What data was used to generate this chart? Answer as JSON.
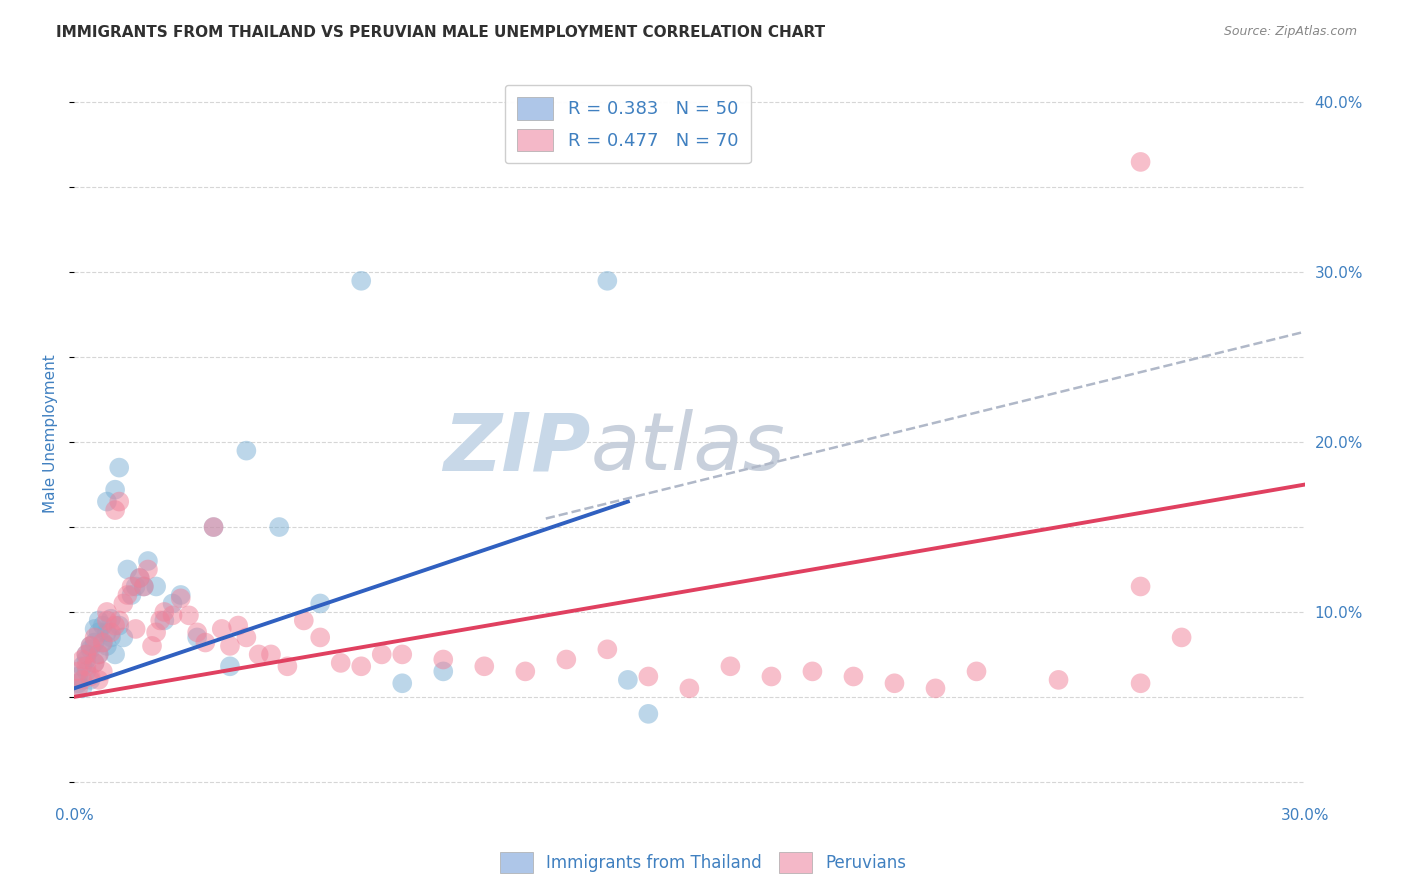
{
  "title": "IMMIGRANTS FROM THAILAND VS PERUVIAN MALE UNEMPLOYMENT CORRELATION CHART",
  "source": "Source: ZipAtlas.com",
  "ylabel": "Male Unemployment",
  "x_min": 0.0,
  "x_max": 0.3,
  "y_min": -0.01,
  "y_max": 0.42,
  "x_ticks": [
    0.0,
    0.05,
    0.1,
    0.15,
    0.2,
    0.25,
    0.3
  ],
  "x_tick_labels": [
    "0.0%",
    "",
    "",
    "",
    "",
    "",
    "30.0%"
  ],
  "y_ticks_right": [
    0.0,
    0.1,
    0.2,
    0.3,
    0.4
  ],
  "y_tick_labels_right": [
    "",
    "10.0%",
    "20.0%",
    "30.0%",
    "40.0%"
  ],
  "legend_blue_label": "R = 0.383   N = 50",
  "legend_pink_label": "R = 0.477   N = 70",
  "legend_blue_color": "#aec6e8",
  "legend_pink_color": "#f4b8c8",
  "scatter_blue_color": "#7aafd4",
  "scatter_pink_color": "#f08098",
  "line_blue_color": "#3060c0",
  "line_pink_color": "#e04060",
  "line_dashed_color": "#b0b8c8",
  "watermark_zip_color": "#c8d8e8",
  "watermark_atlas_color": "#c8d0dc",
  "background_color": "#ffffff",
  "grid_color": "#cccccc",
  "title_color": "#303030",
  "axis_label_color": "#4080c0",
  "tick_label_color": "#4080c0",
  "blue_scatter_x": [
    0.001,
    0.001,
    0.002,
    0.002,
    0.003,
    0.003,
    0.003,
    0.004,
    0.004,
    0.004,
    0.005,
    0.005,
    0.005,
    0.006,
    0.006,
    0.006,
    0.007,
    0.007,
    0.008,
    0.008,
    0.008,
    0.009,
    0.009,
    0.01,
    0.01,
    0.011,
    0.011,
    0.012,
    0.013,
    0.014,
    0.015,
    0.016,
    0.017,
    0.018,
    0.02,
    0.022,
    0.024,
    0.026,
    0.03,
    0.034,
    0.038,
    0.042,
    0.05,
    0.06,
    0.07,
    0.08,
    0.09,
    0.13,
    0.135,
    0.14
  ],
  "blue_scatter_y": [
    0.062,
    0.058,
    0.055,
    0.068,
    0.065,
    0.075,
    0.072,
    0.06,
    0.08,
    0.078,
    0.07,
    0.09,
    0.082,
    0.088,
    0.075,
    0.095,
    0.082,
    0.092,
    0.08,
    0.165,
    0.088,
    0.096,
    0.085,
    0.075,
    0.172,
    0.185,
    0.092,
    0.085,
    0.125,
    0.11,
    0.115,
    0.12,
    0.115,
    0.13,
    0.115,
    0.095,
    0.105,
    0.11,
    0.085,
    0.15,
    0.068,
    0.195,
    0.15,
    0.105,
    0.295,
    0.058,
    0.065,
    0.295,
    0.06,
    0.04
  ],
  "pink_scatter_x": [
    0.001,
    0.001,
    0.002,
    0.002,
    0.003,
    0.003,
    0.004,
    0.004,
    0.005,
    0.005,
    0.006,
    0.006,
    0.007,
    0.007,
    0.008,
    0.008,
    0.009,
    0.01,
    0.01,
    0.011,
    0.011,
    0.012,
    0.013,
    0.014,
    0.015,
    0.016,
    0.017,
    0.018,
    0.019,
    0.02,
    0.021,
    0.022,
    0.024,
    0.026,
    0.028,
    0.03,
    0.032,
    0.034,
    0.036,
    0.038,
    0.04,
    0.042,
    0.045,
    0.048,
    0.052,
    0.056,
    0.06,
    0.065,
    0.07,
    0.075,
    0.08,
    0.09,
    0.1,
    0.11,
    0.12,
    0.13,
    0.14,
    0.15,
    0.16,
    0.17,
    0.18,
    0.19,
    0.2,
    0.21,
    0.22,
    0.24,
    0.26,
    0.27,
    0.26,
    0.26
  ],
  "pink_scatter_y": [
    0.055,
    0.065,
    0.06,
    0.072,
    0.068,
    0.075,
    0.08,
    0.062,
    0.07,
    0.085,
    0.06,
    0.075,
    0.065,
    0.082,
    0.095,
    0.1,
    0.088,
    0.16,
    0.092,
    0.165,
    0.095,
    0.105,
    0.11,
    0.115,
    0.09,
    0.12,
    0.115,
    0.125,
    0.08,
    0.088,
    0.095,
    0.1,
    0.098,
    0.108,
    0.098,
    0.088,
    0.082,
    0.15,
    0.09,
    0.08,
    0.092,
    0.085,
    0.075,
    0.075,
    0.068,
    0.095,
    0.085,
    0.07,
    0.068,
    0.075,
    0.075,
    0.072,
    0.068,
    0.065,
    0.072,
    0.078,
    0.062,
    0.055,
    0.068,
    0.062,
    0.065,
    0.062,
    0.058,
    0.055,
    0.065,
    0.06,
    0.058,
    0.085,
    0.365,
    0.115
  ],
  "blue_line_x": [
    0.0,
    0.135
  ],
  "blue_line_y": [
    0.055,
    0.165
  ],
  "pink_line_x": [
    0.0,
    0.3
  ],
  "pink_line_y": [
    0.05,
    0.175
  ],
  "dashed_line_x": [
    0.115,
    0.3
  ],
  "dashed_line_y": [
    0.155,
    0.265
  ]
}
